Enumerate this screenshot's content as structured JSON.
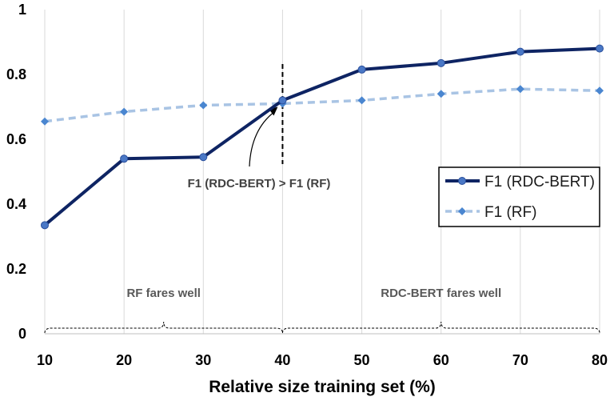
{
  "chart_data": {
    "type": "line",
    "title": "",
    "xlabel": "Relative size training set (%)",
    "ylabel": "",
    "x": [
      10,
      20,
      30,
      40,
      50,
      60,
      70,
      80
    ],
    "xlim": [
      10,
      80
    ],
    "ylim": [
      0,
      1
    ],
    "xticks": [
      "10",
      "20",
      "30",
      "40",
      "50",
      "60",
      "70",
      "80"
    ],
    "yticks": [
      "0",
      "0.2",
      "0.4",
      "0.6",
      "0.8",
      "1"
    ],
    "grid": "vertical",
    "series": [
      {
        "name": "F1 (RDC-BERT)",
        "values": [
          0.335,
          0.54,
          0.545,
          0.72,
          0.815,
          0.835,
          0.87,
          0.88
        ],
        "color": "#0e2463",
        "style": "solid",
        "marker": "circle"
      },
      {
        "name": "F1 (RF)",
        "values": [
          0.655,
          0.685,
          0.705,
          0.71,
          0.72,
          0.74,
          0.755,
          0.75
        ],
        "color": "#a9c4e4",
        "style": "dashed",
        "marker": "diamond",
        "marker_color": "#4a86d0"
      }
    ],
    "legend": {
      "position": "right"
    },
    "annotations": {
      "crossover_text": "F1 (RDC-BERT) > F1 (RF)",
      "crossover_x": 40,
      "regions": [
        {
          "label": "RF fares well",
          "from": 10,
          "to": 40
        },
        {
          "label": "RDC-BERT fares well",
          "from": 40,
          "to": 80
        }
      ]
    }
  }
}
